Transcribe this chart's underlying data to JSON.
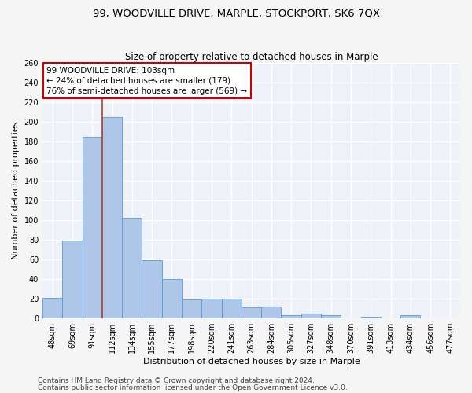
{
  "title1": "99, WOODVILLE DRIVE, MARPLE, STOCKPORT, SK6 7QX",
  "title2": "Size of property relative to detached houses in Marple",
  "xlabel": "Distribution of detached houses by size in Marple",
  "ylabel": "Number of detached properties",
  "footer1": "Contains HM Land Registry data © Crown copyright and database right 2024.",
  "footer2": "Contains public sector information licensed under the Open Government Licence v3.0.",
  "annotation_line1": "99 WOODVILLE DRIVE: 103sqm",
  "annotation_line2": "← 24% of detached houses are smaller (179)",
  "annotation_line3": "76% of semi-detached houses are larger (569) →",
  "bar_values": [
    21,
    79,
    185,
    205,
    102,
    59,
    40,
    19,
    20,
    20,
    11,
    12,
    3,
    5,
    3,
    0,
    2,
    0,
    3,
    0,
    0
  ],
  "bar_labels": [
    "48sqm",
    "69sqm",
    "91sqm",
    "112sqm",
    "134sqm",
    "155sqm",
    "177sqm",
    "198sqm",
    "220sqm",
    "241sqm",
    "263sqm",
    "284sqm",
    "305sqm",
    "327sqm",
    "348sqm",
    "370sqm",
    "391sqm",
    "413sqm",
    "434sqm",
    "456sqm",
    "477sqm"
  ],
  "bar_color": "#aec6e8",
  "bar_edge_color": "#5b9bd5",
  "vline_color": "#c0392b",
  "ylim": [
    0,
    260
  ],
  "yticks": [
    0,
    20,
    40,
    60,
    80,
    100,
    120,
    140,
    160,
    180,
    200,
    220,
    240,
    260
  ],
  "bg_color": "#eef2f8",
  "grid_color": "#ffffff",
  "annotation_box_color": "#ffffff",
  "annotation_border_color": "#cc0000",
  "title1_fontsize": 9.5,
  "title2_fontsize": 8.5,
  "axis_label_fontsize": 8,
  "tick_fontsize": 7,
  "footer_fontsize": 6.5,
  "annotation_fontsize": 7.5
}
